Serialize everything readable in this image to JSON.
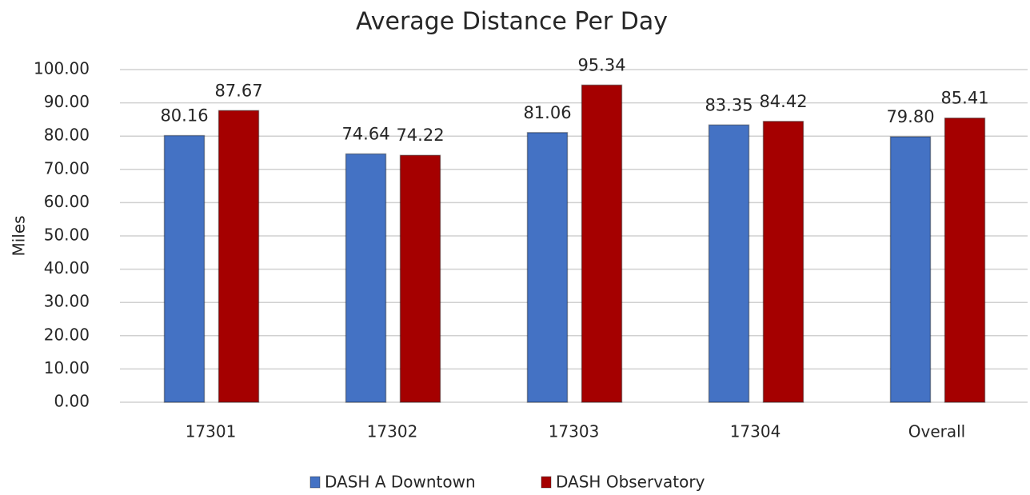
{
  "chart_data": {
    "type": "bar",
    "title": "Average Distance Per Day",
    "y_label": "Miles",
    "categories": [
      "17301",
      "17302",
      "17303",
      "17304",
      "Overall"
    ],
    "series": [
      {
        "name": "DASH A Downtown",
        "color": "#4472c4",
        "values": [
          80.16,
          74.64,
          81.06,
          83.35,
          79.8
        ],
        "value_labels": [
          "80.16",
          "74.64",
          "81.06",
          "83.35",
          "79.80"
        ]
      },
      {
        "name": "DASH Observatory",
        "color": "#a50000",
        "values": [
          87.67,
          74.22,
          95.34,
          84.42,
          85.41
        ],
        "value_labels": [
          "87.67",
          "74.22",
          "95.34",
          "84.42",
          "85.41"
        ]
      }
    ],
    "ylim": [
      0,
      100
    ],
    "yticks": [
      {
        "value": 0,
        "label": "0.00"
      },
      {
        "value": 10,
        "label": "10.00"
      },
      {
        "value": 20,
        "label": "20.00"
      },
      {
        "value": 30,
        "label": "30.00"
      },
      {
        "value": 40,
        "label": "40.00"
      },
      {
        "value": 50,
        "label": "50.00"
      },
      {
        "value": 60,
        "label": "60.00"
      },
      {
        "value": 70,
        "label": "70.00"
      },
      {
        "value": 80,
        "label": "80.00"
      },
      {
        "value": 90,
        "label": "90.00"
      },
      {
        "value": 100,
        "label": "100.00"
      }
    ],
    "grid": true
  }
}
